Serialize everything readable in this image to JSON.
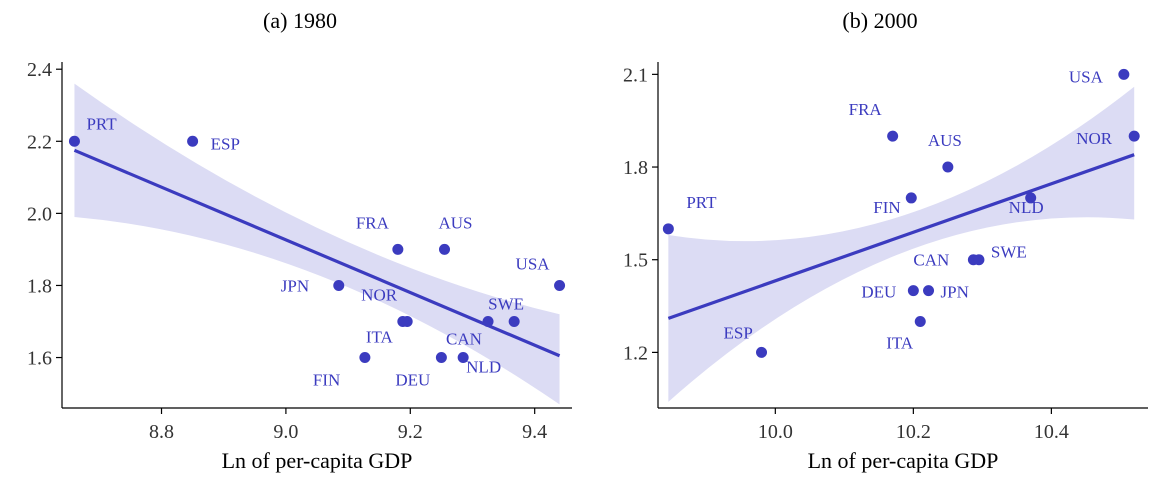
{
  "colors": {
    "line": "#3b3bbf",
    "points": "#3b3bbf",
    "band": "#dcdcf4",
    "labels": "#3b3bbf",
    "axis": "#000000"
  },
  "chart_data": [
    {
      "type": "scatter",
      "title": "(a) 1980",
      "xlabel": "Ln of per-capita GDP",
      "ylabel": "",
      "xlim": [
        8.64,
        9.46
      ],
      "ylim": [
        1.46,
        2.42
      ],
      "xticks": [
        "8.8",
        "9.0",
        "9.2",
        "9.4"
      ],
      "yticks": [
        "1.6",
        "1.8",
        "2.0",
        "2.2",
        "2.4"
      ],
      "points": [
        {
          "label": "PRT",
          "x": 8.66,
          "y": 2.2
        },
        {
          "label": "ESP",
          "x": 8.85,
          "y": 2.2
        },
        {
          "label": "FRA",
          "x": 9.18,
          "y": 1.9
        },
        {
          "label": "AUS",
          "x": 9.255,
          "y": 1.9
        },
        {
          "label": "USA",
          "x": 9.44,
          "y": 1.8
        },
        {
          "label": "JPN",
          "x": 9.085,
          "y": 1.8
        },
        {
          "label": "NOR",
          "x": 9.195,
          "y": 1.7
        },
        {
          "label": "ITA",
          "x": 9.188,
          "y": 1.7
        },
        {
          "label": "SWE",
          "x": 9.367,
          "y": 1.7
        },
        {
          "label": "CAN",
          "x": 9.325,
          "y": 1.7
        },
        {
          "label": "FIN",
          "x": 9.127,
          "y": 1.6
        },
        {
          "label": "DEU",
          "x": 9.25,
          "y": 1.6
        },
        {
          "label": "NLD",
          "x": 9.285,
          "y": 1.6
        }
      ],
      "fit_line": [
        {
          "x": 8.66,
          "y": 2.175
        },
        {
          "x": 9.44,
          "y": 1.605
        }
      ],
      "confidence_band": [
        {
          "x": 8.66,
          "lo": 1.99,
          "hi": 2.36
        },
        {
          "x": 9.05,
          "lo": 1.83,
          "hi": 1.96
        },
        {
          "x": 9.44,
          "lo": 1.47,
          "hi": 1.72
        }
      ]
    },
    {
      "type": "scatter",
      "title": "(b) 2000",
      "xlabel": "Ln of per-capita GDP",
      "ylabel": "",
      "xlim": [
        9.83,
        10.54
      ],
      "ylim": [
        1.02,
        2.14
      ],
      "xticks": [
        "10.0",
        "10.2",
        "10.4"
      ],
      "yticks": [
        "1.2",
        "1.5",
        "1.8",
        "2.1"
      ],
      "points": [
        {
          "label": "USA",
          "x": 10.505,
          "y": 2.1
        },
        {
          "label": "NOR",
          "x": 10.52,
          "y": 1.9
        },
        {
          "label": "FRA",
          "x": 10.17,
          "y": 1.9
        },
        {
          "label": "AUS",
          "x": 10.25,
          "y": 1.8
        },
        {
          "label": "PRT",
          "x": 9.845,
          "y": 1.6
        },
        {
          "label": "FIN",
          "x": 10.197,
          "y": 1.7
        },
        {
          "label": "NLD",
          "x": 10.37,
          "y": 1.7
        },
        {
          "label": "CAN",
          "x": 10.287,
          "y": 1.5
        },
        {
          "label": "SWE",
          "x": 10.295,
          "y": 1.5
        },
        {
          "label": "DEU",
          "x": 10.2,
          "y": 1.4
        },
        {
          "label": "JPN",
          "x": 10.222,
          "y": 1.4
        },
        {
          "label": "ITA",
          "x": 10.21,
          "y": 1.3
        },
        {
          "label": "ESP",
          "x": 9.98,
          "y": 1.2
        }
      ],
      "fit_line": [
        {
          "x": 9.845,
          "y": 1.31
        },
        {
          "x": 10.52,
          "y": 1.84
        }
      ],
      "confidence_band": [
        {
          "x": 9.845,
          "lo": 1.04,
          "hi": 1.58
        },
        {
          "x": 10.18,
          "lo": 1.52,
          "hi": 1.64
        },
        {
          "x": 10.52,
          "lo": 1.63,
          "hi": 2.06
        }
      ]
    }
  ]
}
